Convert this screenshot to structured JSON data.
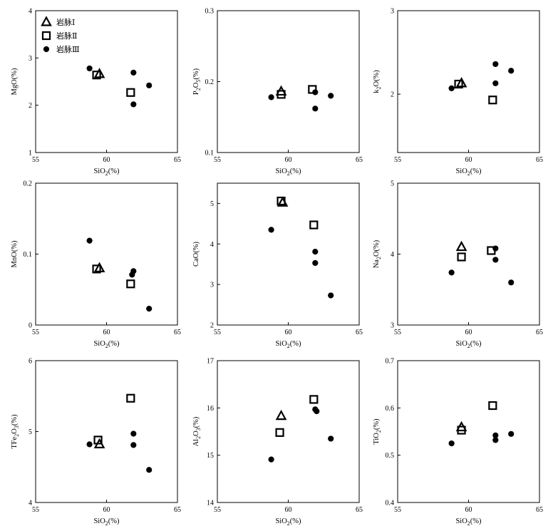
{
  "figure": {
    "legend": [
      {
        "name": "岩脉Ⅰ",
        "marker": "triangle"
      },
      {
        "name": "岩脉Ⅱ",
        "marker": "square"
      },
      {
        "name": "岩脉Ⅲ",
        "marker": "circle"
      }
    ]
  },
  "chart_data": [
    {
      "type": "scatter",
      "id": "mgo",
      "ylabel": {
        "base": "MgO",
        "sub": "",
        "tail": "(%)"
      },
      "xlabel": {
        "base": "SiO",
        "sub": "2",
        "tail": "(%)"
      },
      "xlim": [
        55,
        65
      ],
      "ylim": [
        1,
        4
      ],
      "xticks": [
        "55",
        "60",
        "65"
      ],
      "yticks": [
        "1",
        "2",
        "3",
        "4"
      ],
      "legend": "top-left",
      "series": [
        {
          "name": "岩脉Ⅰ",
          "marker": "triangle",
          "points": [
            [
              59.5,
              2.66
            ]
          ]
        },
        {
          "name": "岩脉Ⅱ",
          "marker": "square",
          "points": [
            [
              59.3,
              2.64
            ],
            [
              61.7,
              2.27
            ]
          ]
        },
        {
          "name": "岩脉Ⅲ",
          "marker": "circle",
          "points": [
            [
              58.8,
              2.78
            ],
            [
              61.9,
              2.69
            ],
            [
              61.9,
              2.02
            ],
            [
              63.0,
              2.42
            ]
          ]
        }
      ]
    },
    {
      "type": "scatter",
      "id": "p2o5",
      "ylabel": {
        "base": "P",
        "sub": "2",
        "mid": "O",
        "sub2": "5",
        "tail": "(%)"
      },
      "xlabel": {
        "base": "SiO",
        "sub": "2",
        "tail": "(%)"
      },
      "xlim": [
        55,
        65
      ],
      "ylim": [
        0.1,
        0.3
      ],
      "xticks": [
        "55",
        "60",
        "65"
      ],
      "yticks": [
        "0.1",
        "0.2",
        "0.3"
      ],
      "series": [
        {
          "name": "岩脉Ⅰ",
          "marker": "triangle",
          "points": [
            [
              59.5,
              0.186
            ]
          ]
        },
        {
          "name": "岩脉Ⅱ",
          "marker": "square",
          "points": [
            [
              59.5,
              0.182
            ],
            [
              61.7,
              0.189
            ]
          ]
        },
        {
          "name": "岩脉Ⅲ",
          "marker": "circle",
          "points": [
            [
              58.8,
              0.178
            ],
            [
              61.9,
              0.185
            ],
            [
              61.9,
              0.162
            ],
            [
              63.0,
              0.18
            ]
          ]
        }
      ]
    },
    {
      "type": "scatter",
      "id": "k2o",
      "ylabel": {
        "base": "k",
        "sub": "2",
        "mid": "O",
        "tail": "(%)"
      },
      "xlabel": {
        "base": "SiO",
        "sub": "2",
        "tail": "(%)"
      },
      "xlim": [
        55,
        65
      ],
      "ylim": [
        1.3,
        3
      ],
      "xticks": [
        "55",
        "60",
        "65"
      ],
      "yticks": [
        "2",
        "3"
      ],
      "series": [
        {
          "name": "岩脉Ⅰ",
          "marker": "triangle",
          "points": [
            [
              59.5,
              2.13
            ]
          ]
        },
        {
          "name": "岩脉Ⅱ",
          "marker": "square",
          "points": [
            [
              59.3,
              2.12
            ],
            [
              61.7,
              1.93
            ]
          ]
        },
        {
          "name": "岩脉Ⅲ",
          "marker": "circle",
          "points": [
            [
              58.8,
              2.07
            ],
            [
              61.9,
              2.36
            ],
            [
              61.9,
              2.13
            ],
            [
              63.0,
              2.28
            ]
          ]
        }
      ]
    },
    {
      "type": "scatter",
      "id": "mno",
      "ylabel": {
        "base": "MnO",
        "sub": "",
        "tail": "(%)"
      },
      "xlabel": {
        "base": "SiO",
        "sub": "2",
        "tail": "(%)"
      },
      "xlim": [
        55,
        65
      ],
      "ylim": [
        0,
        0.2
      ],
      "xticks": [
        "55",
        "60",
        "65"
      ],
      "yticks": [
        "0",
        "0.1",
        "0.2"
      ],
      "series": [
        {
          "name": "岩脉Ⅰ",
          "marker": "triangle",
          "points": [
            [
              59.5,
              0.08
            ]
          ]
        },
        {
          "name": "岩脉Ⅱ",
          "marker": "square",
          "points": [
            [
              59.3,
              0.079
            ],
            [
              61.7,
              0.058
            ]
          ]
        },
        {
          "name": "岩脉Ⅲ",
          "marker": "circle",
          "points": [
            [
              58.8,
              0.119
            ],
            [
              61.8,
              0.071
            ],
            [
              61.9,
              0.076
            ],
            [
              63.0,
              0.023
            ]
          ]
        }
      ]
    },
    {
      "type": "scatter",
      "id": "cao",
      "ylabel": {
        "base": "CaO",
        "sub": "",
        "tail": "(%)"
      },
      "xlabel": {
        "base": "SiO",
        "sub": "2",
        "tail": "(%)"
      },
      "xlim": [
        55,
        65
      ],
      "ylim": [
        2,
        5.5
      ],
      "xticks": [
        "55",
        "60",
        "65"
      ],
      "yticks": [
        "2",
        "3",
        "4",
        "5"
      ],
      "series": [
        {
          "name": "岩脉Ⅰ",
          "marker": "triangle",
          "points": [
            [
              59.6,
              5.02
            ]
          ]
        },
        {
          "name": "岩脉Ⅱ",
          "marker": "square",
          "points": [
            [
              59.5,
              5.06
            ],
            [
              61.8,
              4.47
            ]
          ]
        },
        {
          "name": "岩脉Ⅲ",
          "marker": "circle",
          "points": [
            [
              58.8,
              4.35
            ],
            [
              61.9,
              3.81
            ],
            [
              61.9,
              3.53
            ],
            [
              63.0,
              2.73
            ]
          ]
        }
      ]
    },
    {
      "type": "scatter",
      "id": "na2o",
      "ylabel": {
        "base": "Na",
        "sub": "2",
        "mid": "O",
        "tail": "(%)"
      },
      "xlabel": {
        "base": "SiO",
        "sub": "2",
        "tail": "(%)"
      },
      "xlim": [
        55,
        65
      ],
      "ylim": [
        3,
        5
      ],
      "xticks": [
        "55",
        "60",
        "65"
      ],
      "yticks": [
        "3",
        "4",
        "5"
      ],
      "series": [
        {
          "name": "岩脉Ⅰ",
          "marker": "triangle",
          "points": [
            [
              59.5,
              4.1
            ]
          ]
        },
        {
          "name": "岩脉Ⅱ",
          "marker": "square",
          "points": [
            [
              59.5,
              3.96
            ],
            [
              61.6,
              4.05
            ]
          ]
        },
        {
          "name": "岩脉Ⅲ",
          "marker": "circle",
          "points": [
            [
              58.8,
              3.74
            ],
            [
              61.9,
              4.08
            ],
            [
              61.9,
              3.92
            ],
            [
              63.0,
              3.6
            ]
          ]
        }
      ]
    },
    {
      "type": "scatter",
      "id": "tfe2o3",
      "ylabel": {
        "base": "TFe",
        "sub": "2",
        "mid": "O",
        "sub2": "3",
        "tail": "(%)"
      },
      "xlabel": {
        "base": "SiO",
        "sub": "2",
        "tail": "(%)"
      },
      "xlim": [
        55,
        65
      ],
      "ylim": [
        4,
        6
      ],
      "xticks": [
        "55",
        "60",
        "65"
      ],
      "yticks": [
        "4",
        "5",
        "6"
      ],
      "series": [
        {
          "name": "岩脉Ⅰ",
          "marker": "triangle",
          "points": [
            [
              59.5,
              4.82
            ]
          ]
        },
        {
          "name": "岩脉Ⅱ",
          "marker": "square",
          "points": [
            [
              59.4,
              4.88
            ],
            [
              61.7,
              5.47
            ]
          ]
        },
        {
          "name": "岩脉Ⅲ",
          "marker": "circle",
          "points": [
            [
              58.8,
              4.82
            ],
            [
              61.9,
              4.97
            ],
            [
              61.9,
              4.81
            ],
            [
              63.0,
              4.46
            ]
          ]
        }
      ]
    },
    {
      "type": "scatter",
      "id": "al2o3",
      "ylabel": {
        "base": "Al",
        "sub": "2",
        "mid": "O",
        "sub2": "3",
        "tail": "(%)"
      },
      "xlabel": {
        "base": "SiO",
        "sub": "2",
        "tail": "(%)"
      },
      "xlim": [
        55,
        65
      ],
      "ylim": [
        14,
        17
      ],
      "xticks": [
        "55",
        "60",
        "65"
      ],
      "yticks": [
        "14",
        "15",
        "16",
        "17"
      ],
      "series": [
        {
          "name": "岩脉Ⅰ",
          "marker": "triangle",
          "points": [
            [
              59.5,
              15.83
            ]
          ]
        },
        {
          "name": "岩脉Ⅱ",
          "marker": "square",
          "points": [
            [
              59.4,
              15.48
            ],
            [
              61.8,
              16.18
            ]
          ]
        },
        {
          "name": "岩脉Ⅲ",
          "marker": "circle",
          "points": [
            [
              58.8,
              14.91
            ],
            [
              61.9,
              15.97
            ],
            [
              62.0,
              15.93
            ],
            [
              63.0,
              15.35
            ]
          ]
        }
      ]
    },
    {
      "type": "scatter",
      "id": "tio2",
      "ylabel": {
        "base": "TiO",
        "sub": "2",
        "tail": "(%)"
      },
      "xlabel": {
        "base": "SiO",
        "sub": "2",
        "tail": "(%)"
      },
      "xlim": [
        55,
        65
      ],
      "ylim": [
        0.4,
        0.7
      ],
      "xticks": [
        "55",
        "60",
        "65"
      ],
      "yticks": [
        "0.4",
        "0.5",
        "0.6",
        "0.7"
      ],
      "series": [
        {
          "name": "岩脉Ⅰ",
          "marker": "triangle",
          "points": [
            [
              59.5,
              0.559
            ]
          ]
        },
        {
          "name": "岩脉Ⅱ",
          "marker": "square",
          "points": [
            [
              59.5,
              0.553
            ],
            [
              61.7,
              0.605
            ]
          ]
        },
        {
          "name": "岩脉Ⅲ",
          "marker": "circle",
          "points": [
            [
              58.8,
              0.525
            ],
            [
              61.9,
              0.542
            ],
            [
              61.9,
              0.532
            ],
            [
              63.0,
              0.545
            ]
          ]
        }
      ]
    }
  ]
}
